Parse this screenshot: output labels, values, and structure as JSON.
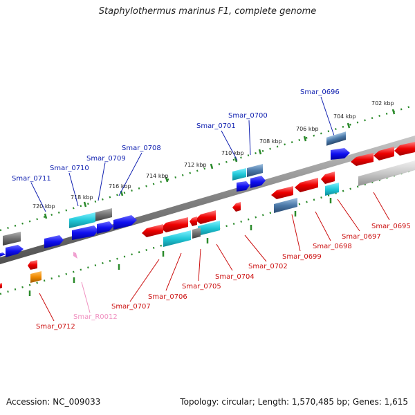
{
  "title": "Staphylothermus marinus F1, complete genome",
  "accession_label": "Accession: NC_009033",
  "stats_label": "Topology: circular; Length: 1,570,485 bp; Genes: 1,615",
  "colors": {
    "forward_gene": "#0000e0",
    "reverse_gene": "#ee0000",
    "forward_label": "#1020b0",
    "reverse_label": "#cc1010",
    "rna_label": "#f090c0",
    "tick_dots": "#2a8a2a",
    "backbone": "#808080",
    "cyan_feature": "#20c8d8",
    "gray_feature": "#707070",
    "steel_feature": "#4a78a8",
    "orange_feature": "#f08a00",
    "pink_feature": "#f0a0d0"
  },
  "scale_ticks": [
    "702 kbp",
    "704 kbp",
    "706 kbp",
    "708 kbp",
    "710 kbp",
    "712 kbp",
    "714 kbp",
    "716 kbp",
    "718 kbp",
    "720 kbp"
  ],
  "forward_genes": [
    "Smar_0696",
    "Smar_0700",
    "Smar_0701",
    "Smar_0708",
    "Smar_0709",
    "Smar_0710",
    "Smar_0711"
  ],
  "reverse_genes": [
    "Smar_0695",
    "Smar_0697",
    "Smar_0698",
    "Smar_0699",
    "Smar_0702",
    "Smar_0704",
    "Smar_0705",
    "Smar_0706",
    "Smar_0707",
    "Smar_0712"
  ],
  "rna_genes": [
    "Smar_R0012"
  ]
}
